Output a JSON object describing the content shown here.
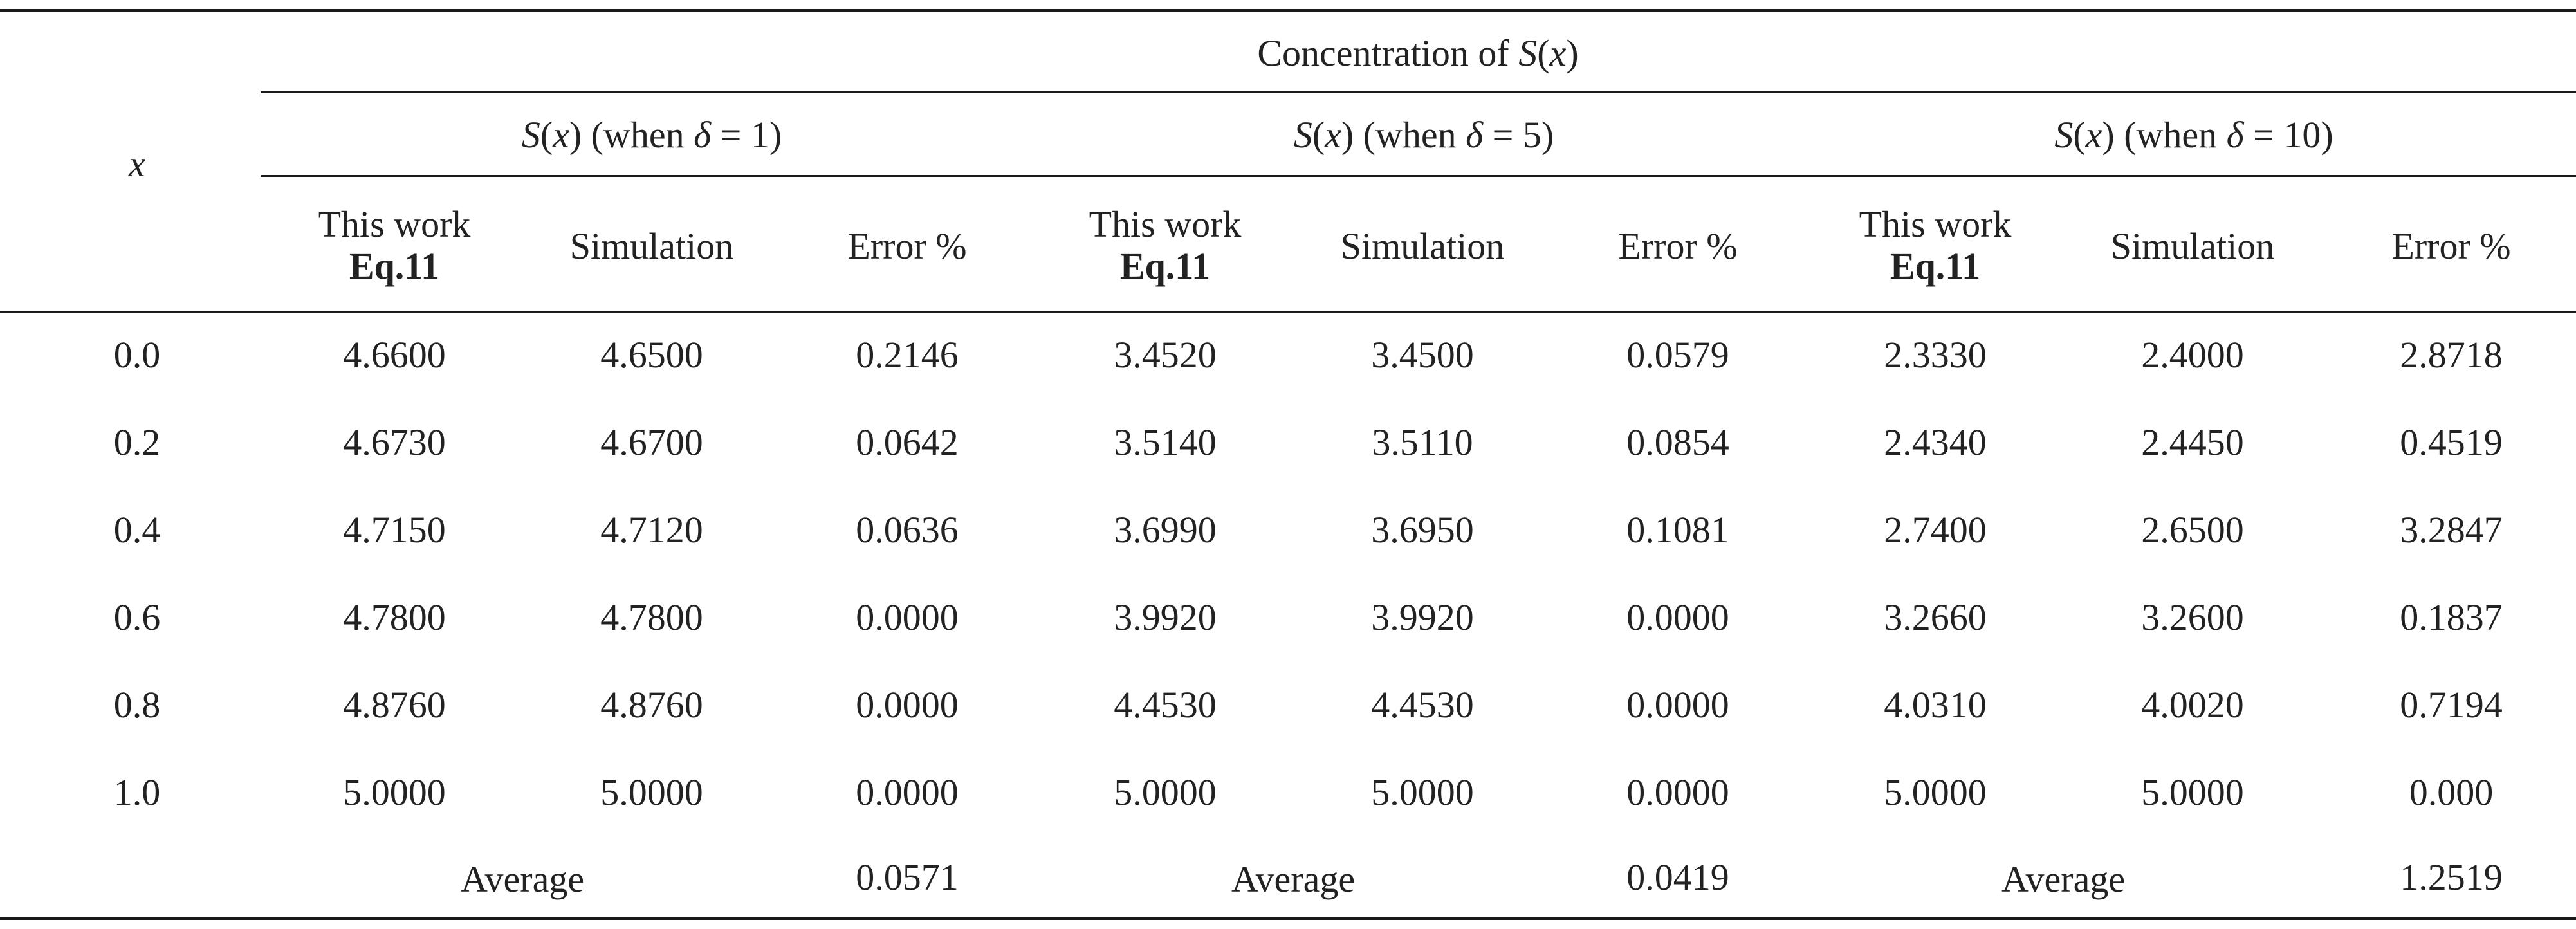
{
  "table": {
    "x_header": "x",
    "group_header": {
      "prefix": "Concentration of ",
      "var": "S",
      "suffix_open": "(",
      "x": "x",
      "suffix_close": ")"
    },
    "subgroups": [
      {
        "fn": "S",
        "arg": "x",
        "when": " (when ",
        "delta": "δ",
        "eq": " = 1)"
      },
      {
        "fn": "S",
        "arg": "x",
        "when": " (when ",
        "delta": "δ",
        "eq": " = 5)"
      },
      {
        "fn": "S",
        "arg": "x",
        "when": " (when ",
        "delta": "δ",
        "eq": " = 10)"
      }
    ],
    "col_headers": {
      "this_work_line1": "This work",
      "this_work_line2": "Eq.11",
      "simulation": "Simulation",
      "error": "Error %"
    },
    "rows": [
      {
        "x": "0.0",
        "v": [
          "4.6600",
          "4.6500",
          "0.2146",
          "3.4520",
          "3.4500",
          "0.0579",
          "2.3330",
          "2.4000",
          "2.8718"
        ]
      },
      {
        "x": "0.2",
        "v": [
          "4.6730",
          "4.6700",
          "0.0642",
          "3.5140",
          "3.5110",
          "0.0854",
          "2.4340",
          "2.4450",
          "0.4519"
        ]
      },
      {
        "x": "0.4",
        "v": [
          "4.7150",
          "4.7120",
          "0.0636",
          "3.6990",
          "3.6950",
          "0.1081",
          "2.7400",
          "2.6500",
          "3.2847"
        ]
      },
      {
        "x": "0.6",
        "v": [
          "4.7800",
          "4.7800",
          "0.0000",
          "3.9920",
          "3.9920",
          "0.0000",
          "3.2660",
          "3.2600",
          "0.1837"
        ]
      },
      {
        "x": "0.8",
        "v": [
          "4.8760",
          "4.8760",
          "0.0000",
          "4.4530",
          "4.4530",
          "0.0000",
          "4.0310",
          "4.0020",
          "0.7194"
        ]
      },
      {
        "x": "1.0",
        "v": [
          "5.0000",
          "5.0000",
          "0.0000",
          "5.0000",
          "5.0000",
          "0.0000",
          "5.0000",
          "5.0000",
          "0.000"
        ]
      }
    ],
    "average": {
      "label": "Average",
      "values": [
        "0.0571",
        "0.0419",
        "1.2519"
      ]
    }
  }
}
